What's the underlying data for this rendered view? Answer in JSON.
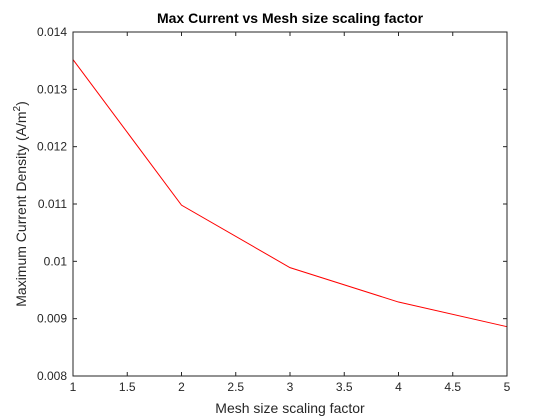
{
  "chart_data": {
    "type": "line",
    "title": "Max Current vs Mesh size scaling factor",
    "xlabel": "Mesh size scaling factor",
    "ylabel_main": "Maximum Current Density (A/m",
    "ylabel_sup": "2",
    "ylabel_end": ")",
    "xlim": [
      1,
      5
    ],
    "ylim": [
      0.008,
      0.014
    ],
    "xticks": [
      1,
      1.5,
      2,
      2.5,
      3,
      3.5,
      4,
      4.5,
      5
    ],
    "xtick_labels": [
      "1",
      "1.5",
      "2",
      "2.5",
      "3",
      "3.5",
      "4",
      "4.5",
      "5"
    ],
    "yticks": [
      0.008,
      0.009,
      0.01,
      0.011,
      0.012,
      0.013,
      0.014
    ],
    "ytick_labels": [
      "0.008",
      "0.009",
      "0.01",
      "0.011",
      "0.012",
      "0.013",
      "0.014"
    ],
    "grid": false,
    "series": [
      {
        "color": "#ff0000",
        "x": [
          1,
          2,
          3,
          4,
          5
        ],
        "y": [
          0.01352,
          0.01098,
          0.00989,
          0.00929,
          0.00886
        ]
      }
    ]
  }
}
